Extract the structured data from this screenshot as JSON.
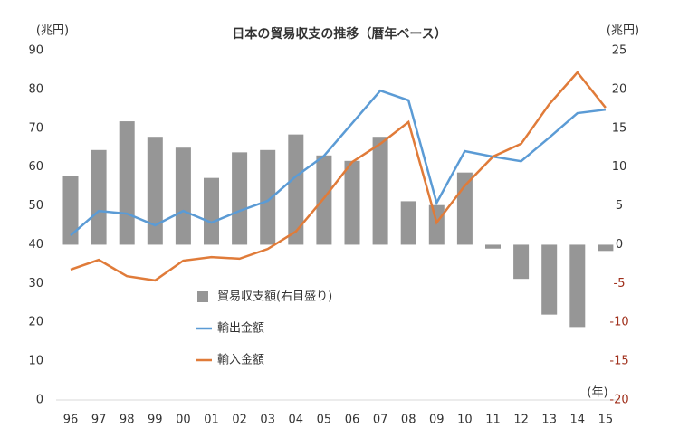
{
  "chart_data": {
    "type": "combo",
    "title": "日本の貿易収支の推移（暦年ベース）",
    "y_unit": "(兆円)",
    "y2_unit": "(兆円)",
    "x_unit": "(年)",
    "categories": [
      "96",
      "97",
      "98",
      "99",
      "00",
      "01",
      "02",
      "03",
      "04",
      "05",
      "06",
      "07",
      "08",
      "09",
      "10",
      "11",
      "12",
      "13",
      "14",
      "15"
    ],
    "series": [
      {
        "name": "貿易収支額(右目盛り)",
        "type": "bar",
        "axis": "y2",
        "color": "#969696",
        "values": [
          8.9,
          12.2,
          15.9,
          13.9,
          12.5,
          8.6,
          11.9,
          12.2,
          14.2,
          11.5,
          10.8,
          13.9,
          5.6,
          5.1,
          9.3,
          -0.5,
          -4.4,
          -9.0,
          -10.6,
          -0.8
        ]
      },
      {
        "name": "輸出金額",
        "type": "line",
        "color": "#5b9bd5",
        "values": [
          42.4,
          48.7,
          48.0,
          45.0,
          48.7,
          45.7,
          48.7,
          51.3,
          57.6,
          62.9,
          71.3,
          79.7,
          77.2,
          50.8,
          64.1,
          62.7,
          61.5,
          67.6,
          73.9,
          74.8
        ]
      },
      {
        "name": "輸入金額",
        "type": "line",
        "color": "#e07b39",
        "values": [
          33.6,
          36.1,
          31.9,
          30.8,
          35.9,
          36.8,
          36.4,
          38.9,
          43.4,
          52.0,
          61.3,
          66.0,
          71.6,
          45.7,
          55.2,
          62.7,
          66.0,
          76.2,
          84.4,
          75.3
        ]
      }
    ],
    "ylim": [
      0,
      90
    ],
    "yticks": [
      0,
      10,
      20,
      30,
      40,
      50,
      60,
      70,
      80,
      90
    ],
    "y2lim": [
      -20,
      25
    ],
    "y2ticks": [
      -20,
      -15,
      -10,
      -5,
      0,
      5,
      10,
      15,
      20,
      25
    ],
    "negative_tick_color": "#a0301c",
    "grid": false
  }
}
